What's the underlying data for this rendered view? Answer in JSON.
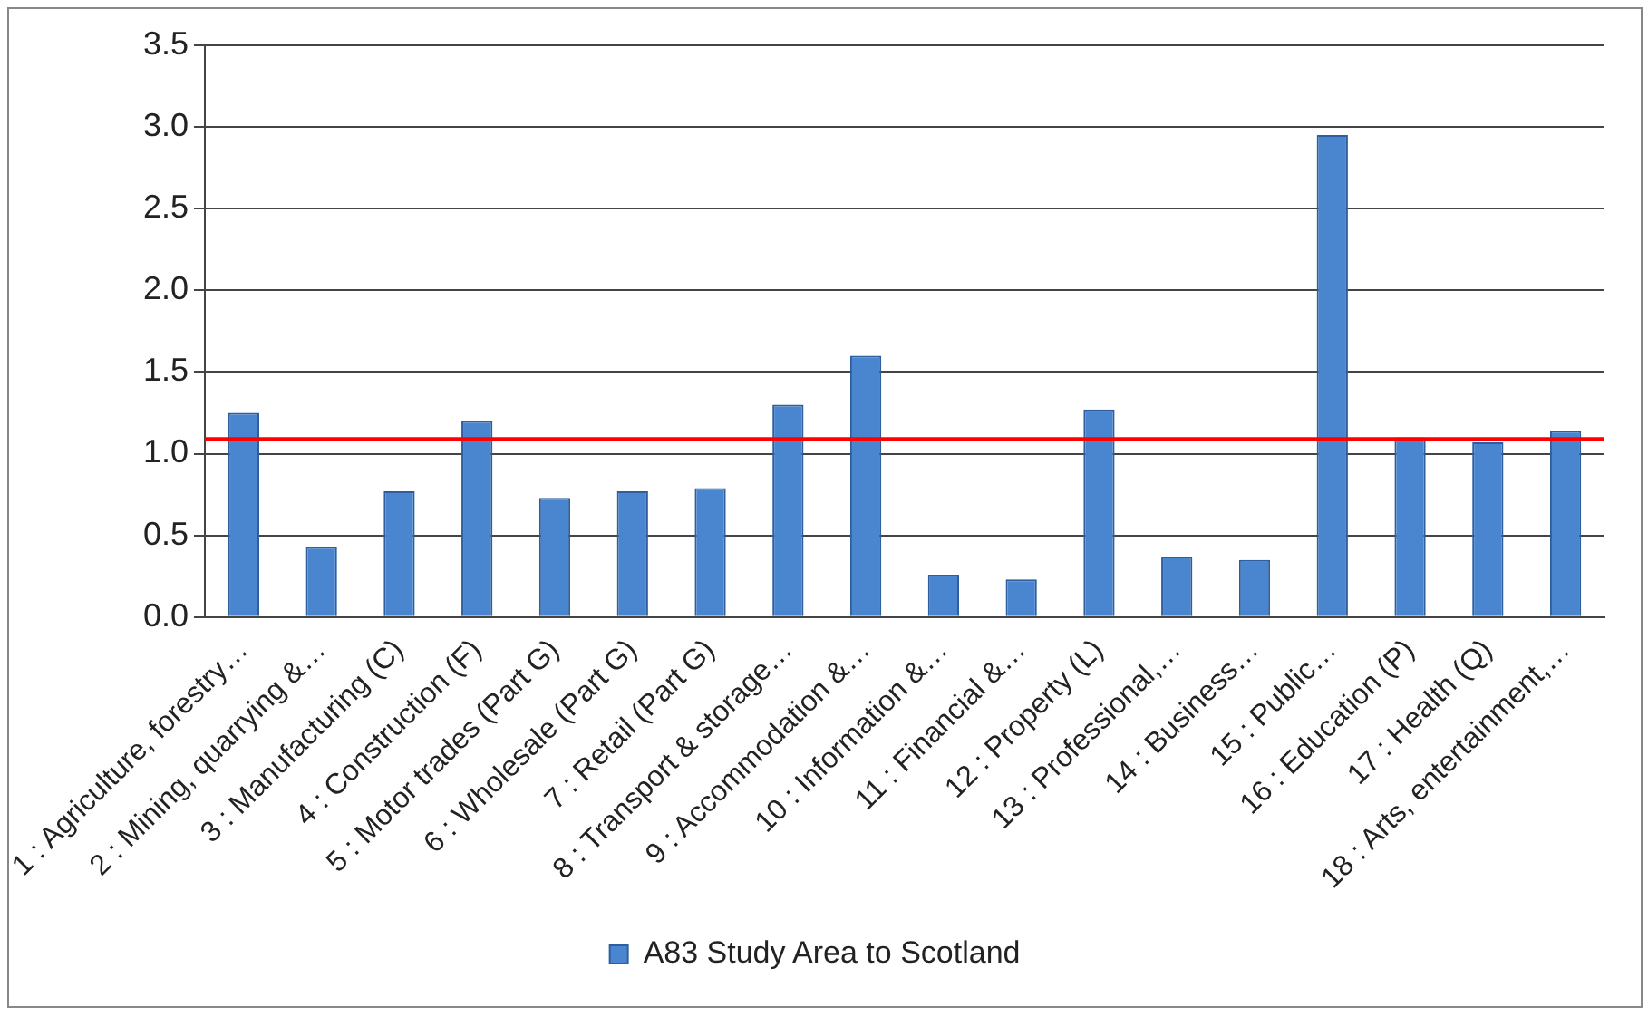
{
  "chart_data": {
    "type": "bar",
    "categories": [
      "1 : Agriculture, forestry…",
      "2 : Mining, quarrying &…",
      "3 : Manufacturing (C)",
      "4 : Construction (F)",
      "5 : Motor trades (Part G)",
      "6 : Wholesale (Part G)",
      "7 : Retail (Part G)",
      "8 : Transport & storage…",
      "9 : Accommodation &…",
      "10 : Information &…",
      "11 : Financial &…",
      "12 : Property (L)",
      "13 : Professional,…",
      "14 : Business…",
      "15 : Public…",
      "16 : Education (P)",
      "17 : Health (Q)",
      "18 : Arts, entertainment,…"
    ],
    "series": [
      {
        "name": "A83 Study Area to Scotland",
        "color": "#4a86d0",
        "values": [
          1.25,
          0.43,
          0.77,
          1.2,
          0.73,
          0.77,
          0.79,
          1.3,
          1.6,
          0.26,
          0.23,
          1.27,
          0.37,
          0.35,
          2.95,
          1.1,
          1.07,
          1.14
        ]
      }
    ],
    "ylim": [
      0,
      3.5
    ],
    "yticks": [
      {
        "value": 0,
        "label": "0.0"
      },
      {
        "value": 0.5,
        "label": "0.5"
      },
      {
        "value": 1,
        "label": "1.0"
      },
      {
        "value": 1.5,
        "label": "1.5"
      },
      {
        "value": 2,
        "label": "2.0"
      },
      {
        "value": 2.5,
        "label": "2.5"
      },
      {
        "value": 3,
        "label": "3.0"
      },
      {
        "value": 3.5,
        "label": "3.5"
      }
    ],
    "ref_lines": [
      {
        "axis": "y",
        "value": 1.09,
        "color": "#ff0000"
      }
    ],
    "grid": "y",
    "legend": "bottom"
  }
}
